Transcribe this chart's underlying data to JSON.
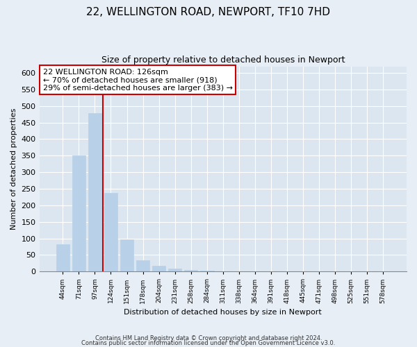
{
  "title1": "22, WELLINGTON ROAD, NEWPORT, TF10 7HD",
  "title2": "Size of property relative to detached houses in Newport",
  "xlabel": "Distribution of detached houses by size in Newport",
  "ylabel": "Number of detached properties",
  "categories": [
    "44sqm",
    "71sqm",
    "97sqm",
    "124sqm",
    "151sqm",
    "178sqm",
    "204sqm",
    "231sqm",
    "258sqm",
    "284sqm",
    "311sqm",
    "338sqm",
    "364sqm",
    "391sqm",
    "418sqm",
    "445sqm",
    "471sqm",
    "498sqm",
    "525sqm",
    "551sqm",
    "578sqm"
  ],
  "values": [
    83,
    350,
    478,
    238,
    97,
    35,
    18,
    8,
    5,
    3,
    0,
    0,
    0,
    0,
    1,
    0,
    0,
    0,
    0,
    0,
    1
  ],
  "bar_color": "#b8d0e8",
  "highlight_color": "#cc0000",
  "vline_bar_index": 3,
  "annotation_title": "22 WELLINGTON ROAD: 126sqm",
  "annotation_line1": "← 70% of detached houses are smaller (918)",
  "annotation_line2": "29% of semi-detached houses are larger (383) →",
  "annotation_box_facecolor": "#ffffff",
  "annotation_box_edgecolor": "#cc0000",
  "ylim": [
    0,
    620
  ],
  "yticks": [
    0,
    50,
    100,
    150,
    200,
    250,
    300,
    350,
    400,
    450,
    500,
    550,
    600
  ],
  "footnote1": "Contains HM Land Registry data © Crown copyright and database right 2024.",
  "footnote2": "Contains public sector information licensed under the Open Government Licence v3.0.",
  "bg_color": "#e8eef5",
  "plot_bg_color": "#dce6f0",
  "grid_color": "#ffffff",
  "title_fontsize": 11,
  "subtitle_fontsize": 9
}
